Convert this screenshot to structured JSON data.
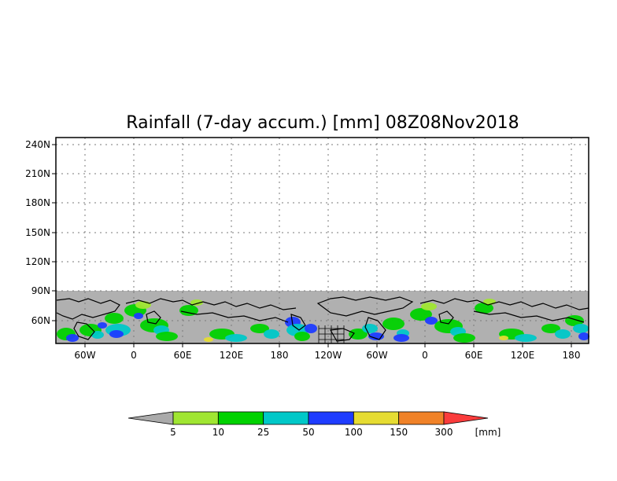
{
  "title": "Rainfall (7-day accum.) [mm] 08Z08Nov2018",
  "map": {
    "y_ticks": [
      "240N",
      "210N",
      "180N",
      "150N",
      "120N",
      "90N",
      "60N"
    ],
    "x_ticks": [
      "60W",
      "0",
      "60E",
      "120E",
      "180",
      "120W",
      "60W",
      "0",
      "60E",
      "120E",
      "180"
    ],
    "grid": true,
    "land_color": "#b0b0b0",
    "outline_color": "#000000",
    "no_data_color": "#ffffff"
  },
  "colorbar": {
    "unit_label": "[mm]",
    "boundaries": [
      "5",
      "10",
      "25",
      "50",
      "100",
      "150",
      "300"
    ],
    "colors": [
      "#aaaaaa",
      "#a0e632",
      "#00d200",
      "#00c8c8",
      "#1e3cff",
      "#e6dc32",
      "#f08228",
      "#fa3c3c"
    ]
  },
  "precip_colors": {
    "green": "#00d200",
    "lightgreen": "#a0e632",
    "cyan": "#00c8c8",
    "blue": "#1e3cff",
    "yellow": "#e6dc32"
  }
}
